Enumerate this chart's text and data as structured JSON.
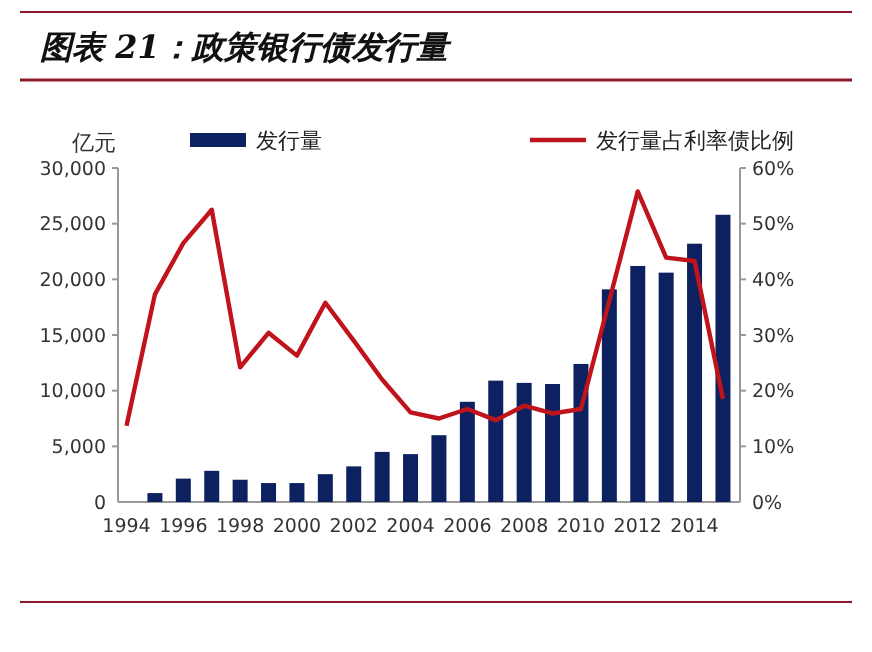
{
  "chart_data": {
    "type": "bar",
    "title": "图表 21：政策银行债发行量",
    "ylabel": "亿元",
    "x": [
      1994,
      1995,
      1996,
      1997,
      1998,
      1999,
      2000,
      2001,
      2002,
      2003,
      2004,
      2005,
      2006,
      2007,
      2008,
      2009,
      2010,
      2011,
      2012,
      2013,
      2014,
      2015
    ],
    "series": [
      {
        "name": "发行量",
        "color": "#0d2160",
        "values": [
          null,
          800,
          2100,
          2800,
          2000,
          1700,
          1700,
          2500,
          3200,
          4500,
          4300,
          6000,
          9000,
          10900,
          10700,
          10600,
          12400,
          19100,
          21200,
          20600,
          23200,
          25800
        ]
      },
      {
        "name": "发行量占利率债比例",
        "type": "line",
        "axis": "y2",
        "color": "#c0141c",
        "values": [
          13.7,
          37.3,
          46.5,
          52.5,
          24.2,
          30.4,
          26.3,
          35.8,
          29,
          22,
          16.1,
          15,
          16.7,
          14.7,
          17.3,
          15.9,
          16.7,
          36.2,
          55.8,
          43.9,
          43.3,
          18.5
        ]
      }
    ],
    "xlim": [
      1993.7,
      2015.6
    ],
    "xticks": [
      1994,
      1996,
      1998,
      2000,
      2002,
      2004,
      2006,
      2008,
      2010,
      2012,
      2014
    ],
    "ylim": [
      0,
      30000
    ],
    "yticks": [
      0,
      {
        "value": 5000,
        "label": "5,000"
      },
      {
        "value": 10000,
        "label": "10,000"
      },
      {
        "value": 15000,
        "label": "15,000"
      },
      {
        "value": 20000,
        "label": "20,000"
      },
      {
        "value": 25000,
        "label": "25,000"
      },
      {
        "value": 30000,
        "label": "30,000"
      }
    ],
    "y2lim": [
      0,
      60
    ],
    "y2ticks": [
      {
        "value": 0,
        "label": "0%"
      },
      {
        "value": 10,
        "label": "10%"
      },
      {
        "value": 20,
        "label": "20%"
      },
      {
        "value": 30,
        "label": "30%"
      },
      {
        "value": 40,
        "label": "40%"
      },
      {
        "value": 50,
        "label": "50%"
      },
      {
        "value": 60,
        "label": "60%"
      }
    ],
    "grid": false,
    "legend": "top"
  }
}
